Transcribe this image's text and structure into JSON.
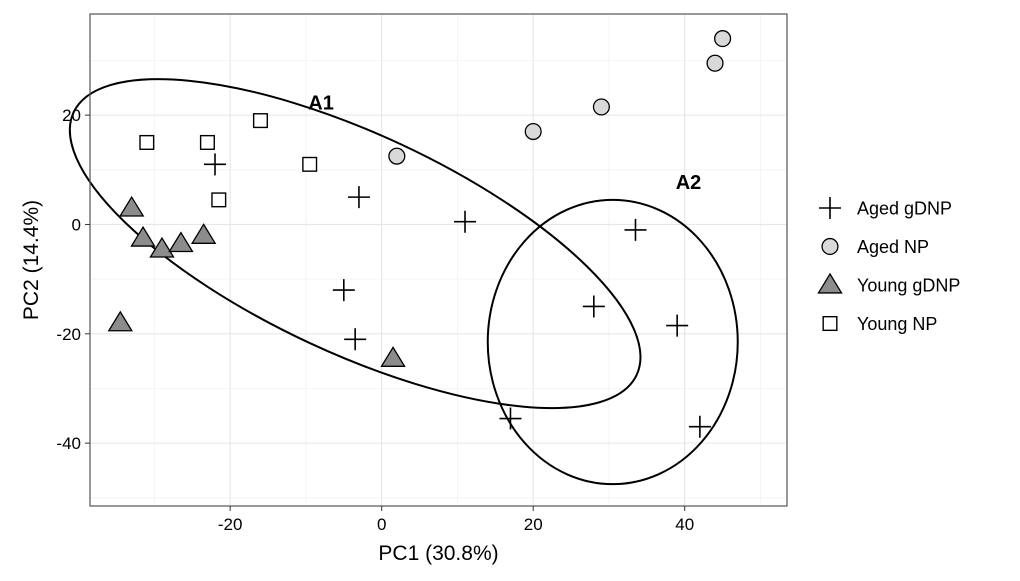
{
  "chart_data": {
    "type": "scatter",
    "title": "",
    "xlabel": "PC1 (30.8%)",
    "ylabel": "PC2 (14.4%)",
    "xlim": [
      -38.5,
      53.5
    ],
    "ylim": [
      -51.5,
      38.5
    ],
    "xticks": [
      -20,
      0,
      20,
      40
    ],
    "yticks": [
      -40,
      -20,
      0,
      20
    ],
    "x_tick_labels": [
      "-20",
      "0",
      "20",
      "40"
    ],
    "y_tick_labels": [
      "-40",
      "-20",
      "0",
      "20"
    ],
    "grid": true,
    "legend_position": "right",
    "series": [
      {
        "name": "Aged gDNP",
        "marker": "plus",
        "points": [
          [
            -22,
            11
          ],
          [
            -3,
            5
          ],
          [
            11,
            0.5
          ],
          [
            -5,
            -12
          ],
          [
            -3.5,
            -21
          ],
          [
            33.5,
            -1
          ],
          [
            28,
            -15
          ],
          [
            39,
            -18.5
          ],
          [
            17,
            -35.5
          ],
          [
            42,
            -37
          ]
        ]
      },
      {
        "name": "Aged NP",
        "marker": "circle",
        "fill": "#d9d9d9",
        "points": [
          [
            45,
            34
          ],
          [
            44,
            29.5
          ],
          [
            29,
            21.5
          ],
          [
            20,
            17
          ],
          [
            2,
            12.5
          ]
        ]
      },
      {
        "name": "Young gDNP",
        "marker": "triangle",
        "fill": "#8c8c8c",
        "points": [
          [
            -33,
            3
          ],
          [
            -31.5,
            -2.5
          ],
          [
            -29,
            -4.5
          ],
          [
            -26.5,
            -3.5
          ],
          [
            -23.5,
            -2
          ],
          [
            -34.5,
            -18
          ],
          [
            1.5,
            -24.5
          ]
        ]
      },
      {
        "name": "Young NP",
        "marker": "square",
        "fill": "#ffffff",
        "points": [
          [
            -31,
            15
          ],
          [
            -23,
            15
          ],
          [
            -16,
            19
          ],
          [
            -9.5,
            11
          ],
          [
            -21.5,
            4.5
          ]
        ]
      }
    ],
    "annotations": [
      {
        "label": "A1",
        "x": -8,
        "y": 21
      },
      {
        "label": "A2",
        "x": 40.5,
        "y": 6.5
      }
    ],
    "ellipses": [
      {
        "label": "A1",
        "cx": -3.5,
        "cy": -3.5,
        "rx": 41,
        "ry": 20,
        "angle_deg": -25
      },
      {
        "label": "A2",
        "cx": 30.5,
        "cy": -21.5,
        "rx": 16.5,
        "ry": 26,
        "angle_deg": 0
      }
    ]
  }
}
